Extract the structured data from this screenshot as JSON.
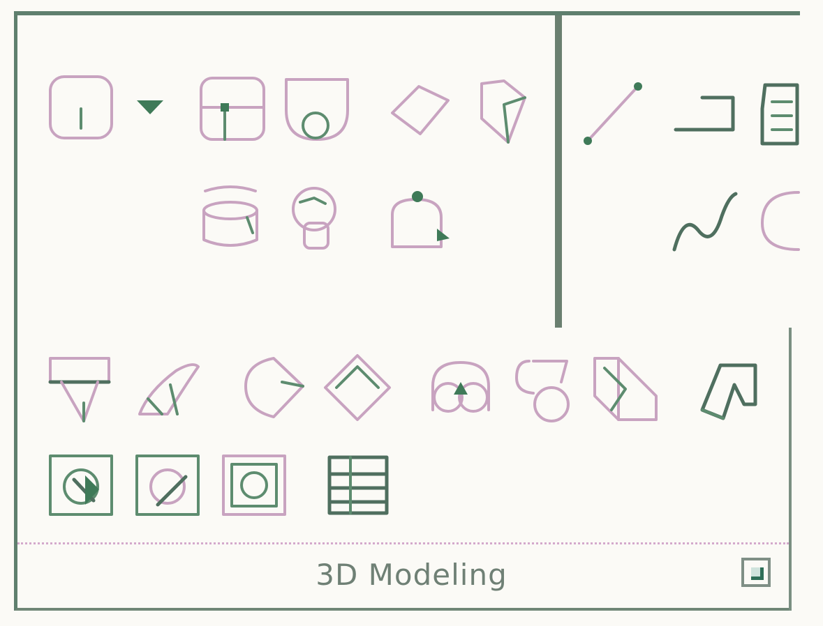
{
  "ribbon_group": {
    "title": "3D Modeling"
  },
  "icons": {
    "primitives_row1": [
      "box-icon",
      "dropdown-arrow-icon",
      "cylinder-icon",
      "cone-icon",
      "wedge-icon",
      "pyramid-icon"
    ],
    "primitives_row2": [
      "torus-icon",
      "sphere-icon",
      "shell-icon"
    ],
    "curves": [
      "line-icon",
      "polyline-icon",
      "planar-surface-icon",
      "spline-icon",
      "arc-icon"
    ],
    "operations_row1": [
      "extrude-icon",
      "sweep-icon",
      "revolve-icon",
      "loft-icon",
      "union-icon",
      "subtract-icon",
      "intersect-icon",
      "presspull-icon"
    ],
    "operations_row2": [
      "fillet-edge-icon",
      "chamfer-edge-icon",
      "offset-edge-icon",
      "mesh-smooth-icon"
    ],
    "launcher": "dialog-launcher-icon"
  },
  "colors": {
    "border": "#5f7f6e",
    "accent_pink": "#c8a3c0",
    "accent_green": "#3f7a58",
    "title_text": "#6f8075"
  }
}
